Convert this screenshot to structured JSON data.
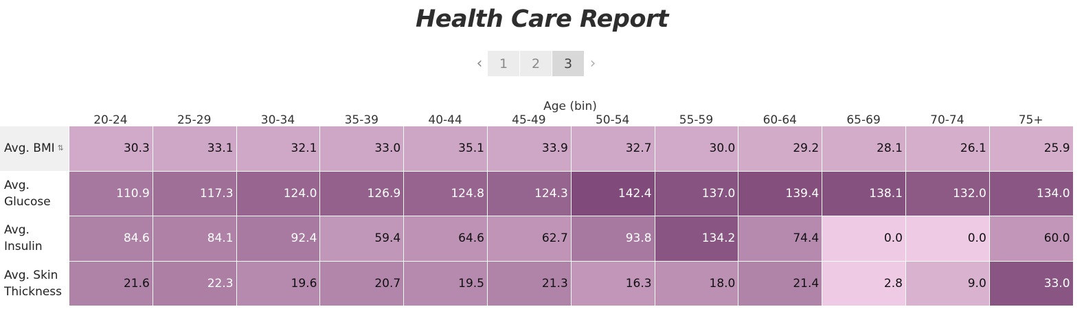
{
  "title": "Health Care Report",
  "pager": {
    "prev_icon": "chevron-left-icon",
    "next_icon": "chevron-right-icon",
    "pages": [
      "1",
      "2",
      "3"
    ],
    "active_page": "3"
  },
  "colors": {
    "scale_light": "#f0cde6",
    "scale_dark": "#7a4474"
  },
  "chart_data": {
    "type": "heatmap",
    "title": "Health Care Report",
    "xlabel": "Age (bin)",
    "columns": [
      "20-24",
      "25-29",
      "30-34",
      "35-39",
      "40-44",
      "45-49",
      "50-54",
      "55-59",
      "60-64",
      "65-69",
      "70-74",
      "75+"
    ],
    "rows": [
      {
        "name": "Avg. BMI",
        "values": [
          30.3,
          33.1,
          32.1,
          33.0,
          35.1,
          33.9,
          32.7,
          30.0,
          29.2,
          28.1,
          26.1,
          25.9
        ]
      },
      {
        "name": "Avg. Glucose",
        "values": [
          110.9,
          117.3,
          124.0,
          126.9,
          124.8,
          124.3,
          142.4,
          137.0,
          139.4,
          138.1,
          132.0,
          134.0
        ]
      },
      {
        "name": "Avg. Insulin",
        "values": [
          84.6,
          84.1,
          92.4,
          59.4,
          64.6,
          62.7,
          93.8,
          134.2,
          74.4,
          0.0,
          0.0,
          60.0
        ]
      },
      {
        "name": "Avg. Skin Thickness",
        "values": [
          21.6,
          22.3,
          19.6,
          20.7,
          19.5,
          21.3,
          16.3,
          18.0,
          21.4,
          2.8,
          9.0,
          33.0
        ]
      }
    ],
    "sort_icon": "sort-icon"
  }
}
